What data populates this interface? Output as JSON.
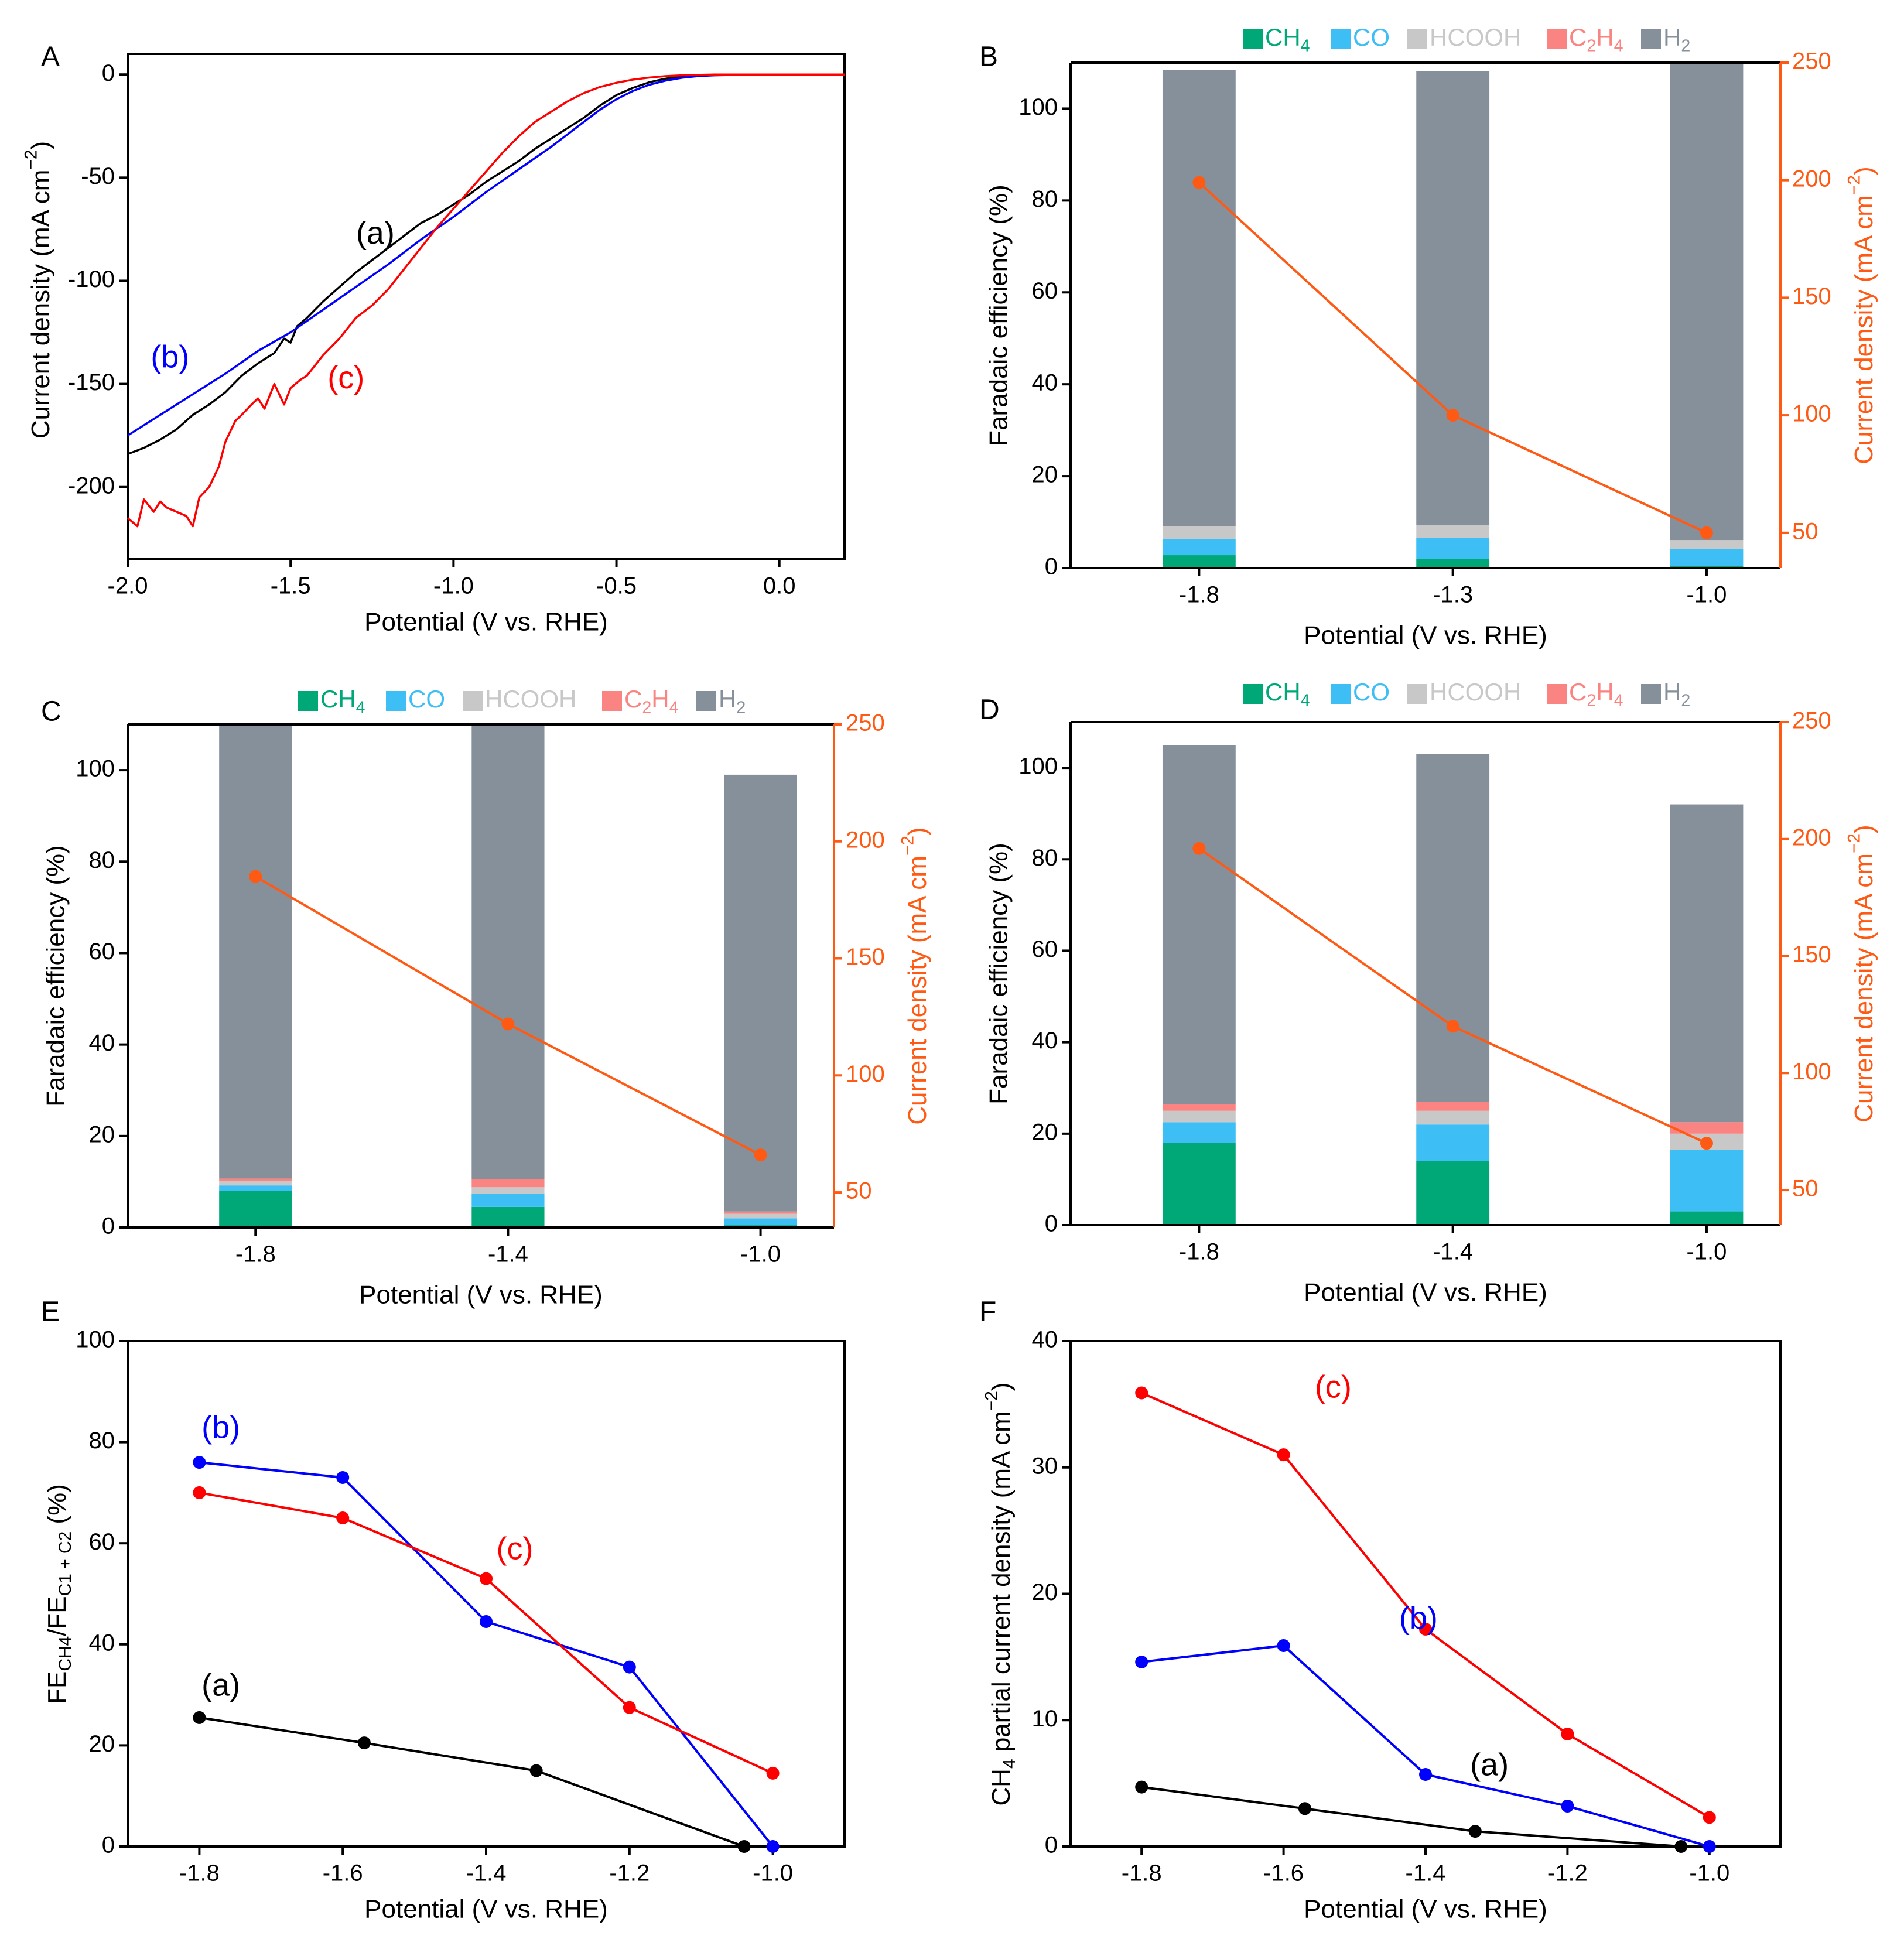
{
  "figure": {
    "background": "#ffffff"
  },
  "colors": {
    "curve_a": "#000000",
    "curve_b": "#0000ff",
    "curve_c": "#ff0000",
    "CH4": "#00a878",
    "CO": "#3dbef5",
    "HCOOH": "#c8c8c8",
    "C2H4": "#f98482",
    "H2": "#86909a",
    "current_line": "#ff5a14",
    "axis": "#000000"
  },
  "panels": {
    "A": {
      "letter": "A"
    },
    "B": {
      "letter": "B"
    },
    "C": {
      "letter": "C"
    },
    "D": {
      "letter": "D"
    },
    "E": {
      "letter": "E"
    },
    "F": {
      "letter": "F"
    }
  },
  "legend": {
    "items": [
      {
        "key": "CH4",
        "base": "CH",
        "sub": "4",
        "after": ""
      },
      {
        "key": "CO",
        "base": "CO",
        "sub": "",
        "after": ""
      },
      {
        "key": "HCOOH",
        "base": "HCOOH",
        "sub": "",
        "after": ""
      },
      {
        "key": "C2H4",
        "base": "C",
        "sub": "2",
        "after": "H",
        "sub2": "4"
      },
      {
        "key": "H2",
        "base": "H",
        "sub": "2",
        "after": ""
      }
    ]
  },
  "chart_data": [
    {
      "id": "A",
      "type": "line",
      "xlabel": "Potential (V vs. RHE)",
      "ylabel_text": "Current density (mA cm",
      "ylabel_sup": "−2",
      "ylabel_close": ")",
      "xlim": [
        -2.0,
        0.2
      ],
      "ylim": [
        -235,
        10
      ],
      "xticks": [
        -2.0,
        -1.5,
        -1.0,
        -0.5,
        0.0
      ],
      "xtick_labels": [
        "-2.0",
        "-1.5",
        "-1.0",
        "-0.5",
        "0.0"
      ],
      "yticks": [
        0,
        -50,
        -100,
        -150,
        -200
      ],
      "ytick_labels": [
        "0",
        "-50",
        "-100",
        "-150",
        "-200"
      ],
      "series": [
        {
          "name": "(a)",
          "color_key": "curve_a",
          "x": [
            -2.0,
            -1.95,
            -1.9,
            -1.85,
            -1.8,
            -1.75,
            -1.7,
            -1.65,
            -1.6,
            -1.55,
            -1.52,
            -1.5,
            -1.48,
            -1.45,
            -1.4,
            -1.35,
            -1.3,
            -1.25,
            -1.2,
            -1.15,
            -1.1,
            -1.05,
            -1.0,
            -0.95,
            -0.9,
            -0.85,
            -0.8,
            -0.75,
            -0.7,
            -0.65,
            -0.6,
            -0.55,
            -0.5,
            -0.45,
            -0.4,
            -0.35,
            -0.3,
            -0.25,
            -0.2,
            -0.15,
            -0.1,
            0.0,
            0.2
          ],
          "y": [
            -184,
            -181,
            -177,
            -172,
            -165,
            -160,
            -154,
            -146,
            -140,
            -135,
            -128,
            -130,
            -122,
            -118,
            -110,
            -103,
            -96,
            -90,
            -84,
            -78,
            -72,
            -68,
            -63,
            -58,
            -52,
            -47,
            -42,
            -36,
            -31,
            -26,
            -21,
            -15,
            -10,
            -6.5,
            -3.8,
            -2.0,
            -1.0,
            -0.5,
            -0.2,
            -0.1,
            0,
            0,
            0
          ]
        },
        {
          "name": "(b)",
          "color_key": "curve_b",
          "x": [
            -2.0,
            -1.9,
            -1.8,
            -1.7,
            -1.6,
            -1.5,
            -1.4,
            -1.3,
            -1.2,
            -1.1,
            -1.0,
            -0.9,
            -0.8,
            -0.7,
            -0.6,
            -0.55,
            -0.5,
            -0.45,
            -0.4,
            -0.35,
            -0.3,
            -0.25,
            -0.2,
            -0.1,
            0.0,
            0.2
          ],
          "y": [
            -175,
            -165,
            -155,
            -145,
            -134,
            -125,
            -114,
            -103,
            -92,
            -80,
            -69,
            -57,
            -46,
            -35,
            -23,
            -17,
            -12,
            -8,
            -5,
            -3,
            -1.6,
            -0.8,
            -0.4,
            -0.1,
            0,
            0
          ]
        },
        {
          "name": "(c)",
          "color_key": "curve_c",
          "x": [
            -2.0,
            -1.97,
            -1.95,
            -1.92,
            -1.9,
            -1.88,
            -1.85,
            -1.82,
            -1.8,
            -1.78,
            -1.75,
            -1.72,
            -1.7,
            -1.67,
            -1.65,
            -1.62,
            -1.6,
            -1.58,
            -1.55,
            -1.52,
            -1.5,
            -1.47,
            -1.45,
            -1.4,
            -1.35,
            -1.3,
            -1.25,
            -1.2,
            -1.15,
            -1.1,
            -1.05,
            -1.0,
            -0.95,
            -0.9,
            -0.85,
            -0.8,
            -0.75,
            -0.7,
            -0.65,
            -0.6,
            -0.55,
            -0.5,
            -0.45,
            -0.4,
            -0.35,
            -0.3,
            -0.25,
            -0.2,
            -0.1,
            0.0,
            0.2
          ],
          "y": [
            -215,
            -219,
            -206,
            -212,
            -207,
            -210,
            -212,
            -214,
            -219,
            -205,
            -200,
            -190,
            -178,
            -168,
            -165,
            -160,
            -157,
            -162,
            -150,
            -160,
            -152,
            -148,
            -146,
            -136,
            -128,
            -118,
            -112,
            -104,
            -94,
            -84,
            -74,
            -65,
            -56,
            -47,
            -38,
            -30,
            -23,
            -18,
            -13,
            -9,
            -6,
            -4,
            -2.5,
            -1.5,
            -0.8,
            -0.4,
            -0.2,
            0,
            0,
            0,
            0
          ]
        }
      ],
      "annotations": [
        {
          "text": "(a)",
          "x": -1.24,
          "y": -78,
          "color_key": "curve_a"
        },
        {
          "text": "(b)",
          "x": -1.87,
          "y": -138,
          "color_key": "curve_b"
        },
        {
          "text": "(c)",
          "x": -1.33,
          "y": -148,
          "color_key": "curve_c"
        }
      ]
    },
    {
      "id": "B",
      "type": "stacked-bar-with-line",
      "xlabel": "Potential (V vs. RHE)",
      "ylabel": "Faradaic efficiency (%)",
      "y2label_text": "Current density (mA cm",
      "y2label_sup": "−2",
      "y2label_close": ")",
      "categories": [
        "-1.8",
        "-1.3",
        "-1.0"
      ],
      "ylim": [
        0,
        110
      ],
      "yticks": [
        0,
        20,
        40,
        60,
        80,
        100
      ],
      "y2lim": [
        35,
        250
      ],
      "y2ticks": [
        50,
        100,
        150,
        200,
        250
      ],
      "stack_order": [
        "CH4",
        "CO",
        "HCOOH",
        "C2H4",
        "H2"
      ],
      "series": [
        {
          "name": "CH4",
          "values": [
            2.8,
            2.0,
            0.5
          ]
        },
        {
          "name": "CO",
          "values": [
            3.5,
            4.5,
            3.6
          ]
        },
        {
          "name": "HCOOH",
          "values": [
            2.8,
            2.8,
            2.0
          ]
        },
        {
          "name": "C2H4",
          "values": [
            0.0,
            0.0,
            0.0
          ]
        },
        {
          "name": "H2",
          "values": [
            99.3,
            98.8,
            104.9
          ]
        }
      ],
      "current_density": [
        199,
        100,
        50
      ]
    },
    {
      "id": "C",
      "type": "stacked-bar-with-line",
      "xlabel": "Potential (V vs. RHE)",
      "ylabel": "Faradaic efficiency (%)",
      "y2label_text": "Current density (mA cm",
      "y2label_sup": "−2",
      "y2label_close": ")",
      "categories": [
        "-1.8",
        "-1.4",
        "-1.0"
      ],
      "ylim": [
        0,
        110
      ],
      "yticks": [
        0,
        20,
        40,
        60,
        80,
        100
      ],
      "y2lim": [
        35,
        250
      ],
      "y2ticks": [
        50,
        100,
        150,
        200,
        250
      ],
      "stack_order": [
        "CH4",
        "CO",
        "HCOOH",
        "C2H4",
        "H2"
      ],
      "series": [
        {
          "name": "CH4",
          "values": [
            8.0,
            4.5,
            0.5
          ]
        },
        {
          "name": "CO",
          "values": [
            1.2,
            2.8,
            1.5
          ]
        },
        {
          "name": "HCOOH",
          "values": [
            1.0,
            1.5,
            1.0
          ]
        },
        {
          "name": "C2H4",
          "values": [
            0.5,
            1.7,
            0.5
          ]
        },
        {
          "name": "H2",
          "values": [
            99.3,
            101.5,
            95.5
          ]
        }
      ],
      "current_density": [
        185,
        122,
        66
      ]
    },
    {
      "id": "D",
      "type": "stacked-bar-with-line",
      "xlabel": "Potential (V vs. RHE)",
      "ylabel": "Faradaic efficiency (%)",
      "y2label_text": "Current density (mA cm",
      "y2label_sup": "−2",
      "y2label_close": ")",
      "categories": [
        "-1.8",
        "-1.4",
        "-1.0"
      ],
      "ylim": [
        0,
        110
      ],
      "yticks": [
        0,
        20,
        40,
        60,
        80,
        100
      ],
      "y2lim": [
        35,
        250
      ],
      "y2ticks": [
        50,
        100,
        150,
        200,
        250
      ],
      "stack_order": [
        "CH4",
        "CO",
        "HCOOH",
        "C2H4",
        "H2"
      ],
      "series": [
        {
          "name": "CH4",
          "values": [
            18.0,
            14.0,
            3.0
          ]
        },
        {
          "name": "CO",
          "values": [
            4.5,
            8.0,
            13.5
          ]
        },
        {
          "name": "HCOOH",
          "values": [
            2.5,
            3.0,
            3.5
          ]
        },
        {
          "name": "C2H4",
          "values": [
            1.5,
            2.0,
            2.5
          ]
        },
        {
          "name": "H2",
          "values": [
            78.5,
            76.0,
            69.5
          ]
        }
      ],
      "current_density": [
        196,
        120,
        70
      ]
    },
    {
      "id": "E",
      "type": "line",
      "xlabel": "Potential (V vs. RHE)",
      "ylabel_parts": [
        "FE",
        "CH4",
        "/FE",
        "C1 + C2",
        " (%)"
      ],
      "xlim": [
        -1.9,
        -0.9
      ],
      "ylim": [
        0,
        100
      ],
      "xticks": [
        -1.8,
        -1.6,
        -1.4,
        -1.2,
        -1.0
      ],
      "xtick_labels": [
        "-1.8",
        "-1.6",
        "-1.4",
        "-1.2",
        "-1.0"
      ],
      "yticks": [
        0,
        20,
        40,
        60,
        80,
        100
      ],
      "ytick_labels": [
        "0",
        "20",
        "40",
        "60",
        "80",
        "100"
      ],
      "series": [
        {
          "name": "(a)",
          "color_key": "curve_a",
          "x": [
            -1.8,
            -1.57,
            -1.33,
            -1.04
          ],
          "y": [
            25.5,
            20.5,
            15.0,
            0.0
          ]
        },
        {
          "name": "(b)",
          "color_key": "curve_b",
          "x": [
            -1.8,
            -1.6,
            -1.4,
            -1.2,
            -1.0
          ],
          "y": [
            76.0,
            73.0,
            44.5,
            35.5,
            0.0
          ]
        },
        {
          "name": "(c)",
          "color_key": "curve_c",
          "x": [
            -1.8,
            -1.6,
            -1.4,
            -1.2,
            -1.0
          ],
          "y": [
            70.0,
            65.0,
            53.0,
            27.5,
            14.5
          ]
        }
      ],
      "annotations": [
        {
          "text": "(a)",
          "x": -1.77,
          "y": 31.5,
          "color_key": "curve_a"
        },
        {
          "text": "(b)",
          "x": -1.77,
          "y": 82.5,
          "color_key": "curve_b"
        },
        {
          "text": "(c)",
          "x": -1.36,
          "y": 58.5,
          "color_key": "curve_c"
        }
      ]
    },
    {
      "id": "F",
      "type": "line",
      "xlabel": "Potential (V vs. RHE)",
      "ylabel_parts": [
        "CH",
        "4",
        " partial current density (mA cm",
        "−2",
        ")"
      ],
      "xlim": [
        -1.9,
        -0.9
      ],
      "ylim": [
        0,
        40
      ],
      "xticks": [
        -1.8,
        -1.6,
        -1.4,
        -1.2,
        -1.0
      ],
      "xtick_labels": [
        "-1.8",
        "-1.6",
        "-1.4",
        "-1.2",
        "-1.0"
      ],
      "yticks": [
        0,
        10,
        20,
        30,
        40
      ],
      "ytick_labels": [
        "0",
        "10",
        "20",
        "30",
        "40"
      ],
      "series": [
        {
          "name": "(a)",
          "color_key": "curve_a",
          "x": [
            -1.8,
            -1.57,
            -1.33,
            -1.04
          ],
          "y": [
            4.7,
            3.0,
            1.2,
            0.0
          ]
        },
        {
          "name": "(b)",
          "color_key": "curve_b",
          "x": [
            -1.8,
            -1.6,
            -1.4,
            -1.2,
            -1.0
          ],
          "y": [
            14.6,
            15.9,
            5.7,
            3.2,
            0.0
          ]
        },
        {
          "name": "(c)",
          "color_key": "curve_c",
          "x": [
            -1.8,
            -1.6,
            -1.4,
            -1.2,
            -1.0
          ],
          "y": [
            35.9,
            31.0,
            17.2,
            8.9,
            2.3
          ]
        }
      ],
      "annotations": [
        {
          "text": "(a)",
          "x": -1.31,
          "y": 6.3,
          "color_key": "curve_a"
        },
        {
          "text": "(b)",
          "x": -1.41,
          "y": 17.9,
          "color_key": "curve_b"
        },
        {
          "text": "(c)",
          "x": -1.53,
          "y": 36.2,
          "color_key": "curve_c"
        }
      ]
    }
  ]
}
